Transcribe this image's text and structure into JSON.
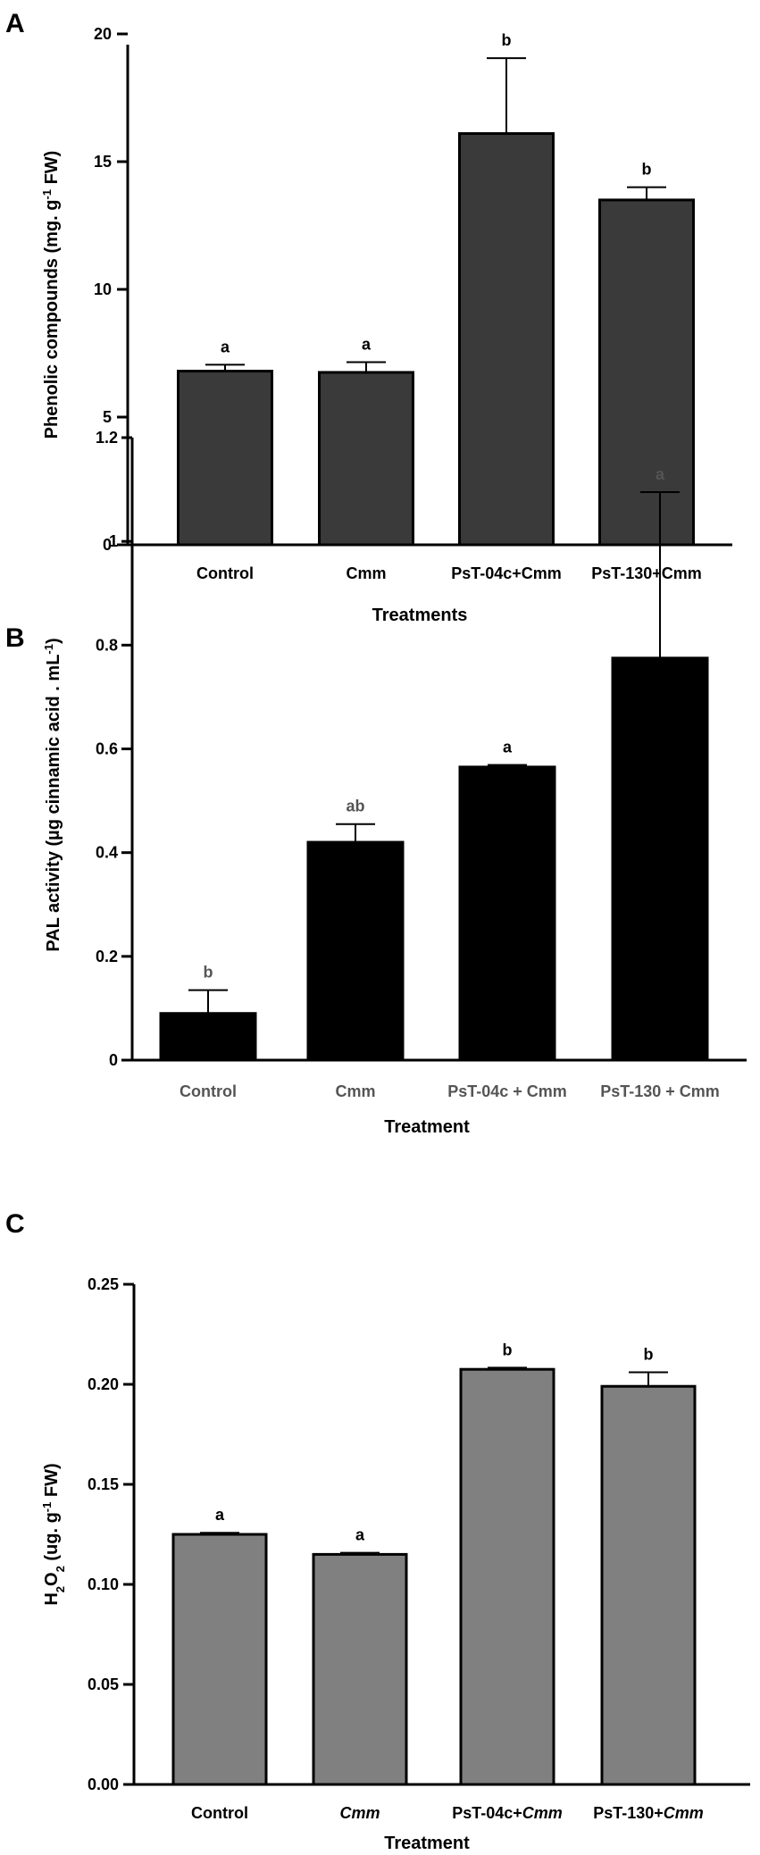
{
  "chart_data": [
    {
      "panel": "A",
      "type": "bar",
      "categories": [
        "Control",
        "Cmm",
        "PsT-04c+Cmm",
        "PsT-130+Cmm"
      ],
      "values": [
        6.8,
        6.75,
        16.1,
        13.5
      ],
      "errors": [
        0.25,
        0.4,
        2.95,
        0.5
      ],
      "significance": [
        "a",
        "a",
        "b",
        "b"
      ],
      "ylabel": "Phenolic compounds (mg. g-1 FW)",
      "xlabel": "Treatments",
      "ylim": [
        0,
        20
      ],
      "yticks": [
        "0",
        "5",
        "10",
        "15",
        "20"
      ],
      "bar_color": "#3a3a3a"
    },
    {
      "panel": "B",
      "type": "bar",
      "categories": [
        "Control",
        "Cmm",
        "PsT-04c + Cmm",
        "PsT-130 + Cmm"
      ],
      "values": [
        0.09,
        0.42,
        0.565,
        0.775
      ],
      "errors": [
        0.045,
        0.035,
        0.004,
        0.32
      ],
      "significance": [
        "b",
        "ab",
        "a",
        "a"
      ],
      "ylabel": "PAL activity (µg cinnamic acid . mL-1)",
      "xlabel": "Treatment",
      "ylim": [
        0,
        1.2
      ],
      "yticks": [
        "0",
        "0.2",
        "0.4",
        "0.6",
        "0.8",
        "1",
        "1.2"
      ],
      "bar_color": "#000000"
    },
    {
      "panel": "C",
      "type": "bar",
      "categories": [
        "Control",
        "Cmm",
        "PsT-04c+Cmm",
        "PsT-130+Cmm"
      ],
      "values": [
        0.125,
        0.115,
        0.2075,
        0.199
      ],
      "errors": [
        0.0008,
        0.0008,
        0.0008,
        0.007
      ],
      "significance": [
        "a",
        "a",
        "b",
        "b"
      ],
      "ylabel": "H2O2 (ug. g-1 FW)",
      "xlabel": "Treatment",
      "ylim": [
        0,
        0.25
      ],
      "yticks": [
        "0.00",
        "0.05",
        "0.10",
        "0.15",
        "0.20",
        "0.25"
      ],
      "bar_color": "#808080"
    }
  ]
}
